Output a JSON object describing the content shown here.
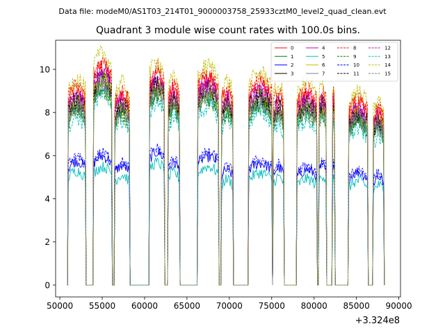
{
  "chart_data": {
    "type": "line",
    "suptitle": "Data file: modeM0/AS1T03_214T01_9000003758_25933cztM0_level2_quad_clean.evt",
    "title": "Quadrant 3 module wise count rates with 100.0s bins.",
    "xlabel": "",
    "ylabel": "",
    "x_offset_label": "+3.324e8",
    "xlim": [
      49500,
      90200
    ],
    "ylim": [
      -0.55,
      11.35
    ],
    "x_ticks": [
      50000,
      55000,
      60000,
      65000,
      70000,
      75000,
      80000,
      85000,
      90000
    ],
    "x_tick_labels": [
      "50000",
      "55000",
      "60000",
      "65000",
      "70000",
      "75000",
      "80000",
      "85000",
      "90000"
    ],
    "y_ticks": [
      0,
      2,
      4,
      6,
      8,
      10
    ],
    "y_tick_labels": [
      "0",
      "2",
      "4",
      "6",
      "8",
      "10"
    ],
    "legend_position": "top-right",
    "segments": [
      {
        "start": 51000,
        "end": 53000,
        "level": 8.2,
        "min_level": 5.3
      },
      {
        "start": 54000,
        "end": 56100,
        "level": 9.2,
        "min_level": 5.5
      },
      {
        "start": 56500,
        "end": 58200,
        "level": 8.0,
        "min_level": 5.1
      },
      {
        "start": 60600,
        "end": 62300,
        "level": 8.9,
        "min_level": 5.7
      },
      {
        "start": 62800,
        "end": 64100,
        "level": 8.2,
        "min_level": 5.2
      },
      {
        "start": 66300,
        "end": 68700,
        "level": 8.7,
        "min_level": 5.5
      },
      {
        "start": 69100,
        "end": 70400,
        "level": 8.1,
        "min_level": 4.9
      },
      {
        "start": 72300,
        "end": 75000,
        "level": 8.4,
        "min_level": 5.2
      },
      {
        "start": 75200,
        "end": 76400,
        "level": 7.9,
        "min_level": 5.0
      },
      {
        "start": 78000,
        "end": 80300,
        "level": 8.0,
        "min_level": 4.9
      },
      {
        "start": 80600,
        "end": 81400,
        "level": 8.0,
        "min_level": 5.1
      },
      {
        "start": 82200,
        "end": 82400,
        "level": 8.0,
        "min_level": 5.0
      },
      {
        "start": 84100,
        "end": 86300,
        "level": 7.6,
        "min_level": 4.8
      },
      {
        "start": 87000,
        "end": 88200,
        "level": 7.3,
        "min_level": 4.6
      }
    ],
    "series": [
      {
        "name": "0",
        "color": "#ff0000",
        "dash": "solid",
        "factor": 1.04
      },
      {
        "name": "1",
        "color": "#008000",
        "dash": "solid",
        "factor": 0.95
      },
      {
        "name": "2",
        "color": "#0000ff",
        "dash": "solid",
        "factor": 0.72
      },
      {
        "name": "3",
        "color": "#000000",
        "dash": "solid",
        "factor": 0.99
      },
      {
        "name": "4",
        "color": "#bf00bf",
        "dash": "solid",
        "factor": 1.0
      },
      {
        "name": "5",
        "color": "#00bfbf",
        "dash": "solid",
        "factor": 0.66
      },
      {
        "name": "6",
        "color": "#bfbf00",
        "dash": "solid",
        "factor": 0.98
      },
      {
        "name": "7",
        "color": "#808080",
        "dash": "solid",
        "factor": 0.96
      },
      {
        "name": "8",
        "color": "#ff0000",
        "dash": "dashed",
        "factor": 1.06
      },
      {
        "name": "9",
        "color": "#008000",
        "dash": "dashed",
        "factor": 0.93
      },
      {
        "name": "10",
        "color": "#0000ff",
        "dash": "dashed",
        "factor": 0.74
      },
      {
        "name": "11",
        "color": "#000000",
        "dash": "dashed",
        "factor": 0.98
      },
      {
        "name": "12",
        "color": "#bf00bf",
        "dash": "dashed",
        "factor": 1.01
      },
      {
        "name": "13",
        "color": "#00bfbf",
        "dash": "dashed",
        "factor": 0.9
      },
      {
        "name": "14",
        "color": "#bfbf00",
        "dash": "dashed",
        "factor": 1.1
      },
      {
        "name": "15",
        "color": "#808080",
        "dash": "dashed",
        "factor": 0.95
      }
    ]
  }
}
